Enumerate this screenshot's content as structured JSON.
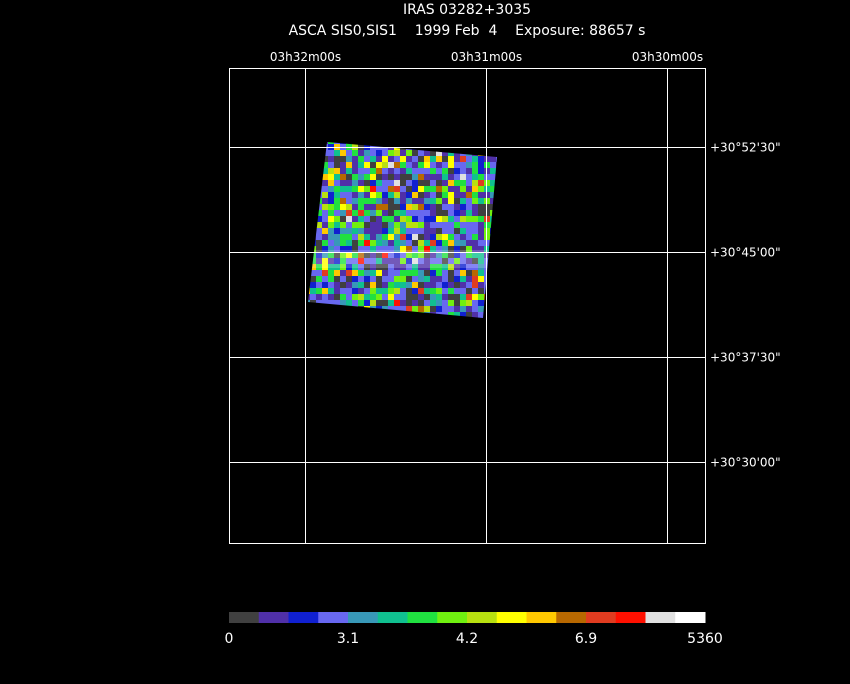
{
  "header": {
    "title": "IRAS 03282+3035",
    "subtitle": "ASCA SIS0,SIS1    1999 Feb  4    Exposure: 88657 s"
  },
  "ra_labels": [
    "03h32m00s",
    "03h31m00s",
    "03h30m00s"
  ],
  "dec_labels": [
    "+30°52'30\"",
    "+30°45'00\"",
    "+30°37'30\"",
    "+30°30'00\""
  ],
  "colorbar": {
    "labels": [
      "0",
      "3.1",
      "4.2",
      "6.9",
      "5360"
    ],
    "colors": [
      "#404040",
      "#5030a8",
      "#1020d0",
      "#6868f0",
      "#3898b8",
      "#10c090",
      "#20e040",
      "#70f010",
      "#b8e010",
      "#ffff00",
      "#ffc800",
      "#b86800",
      "#e03c20",
      "#ff1000",
      "#e0e0e0",
      "#ffffff"
    ]
  }
}
